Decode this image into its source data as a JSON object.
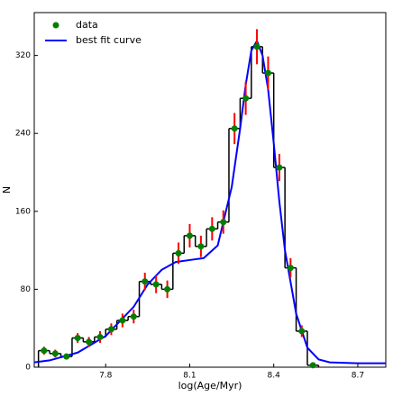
{
  "chart_data": {
    "type": "histogram_fit",
    "xlabel": "log(Age/Myr)",
    "ylabel": "N",
    "xlim": [
      7.545,
      8.8
    ],
    "ylim": [
      0,
      364
    ],
    "xticks": [
      7.8,
      8.1,
      8.4,
      8.7
    ],
    "yticks": [
      0,
      80,
      160,
      240,
      320
    ],
    "legend": "upper left",
    "histogram": {
      "color": "#000000",
      "bins": [
        7.56,
        7.6,
        7.64,
        7.68,
        7.72,
        7.76,
        7.8,
        7.84,
        7.88,
        7.92,
        7.96,
        8.0,
        8.04,
        8.08,
        8.12,
        8.16,
        8.2,
        8.24,
        8.28,
        8.32,
        8.36,
        8.4,
        8.44,
        8.48,
        8.52,
        8.56
      ],
      "counts": [
        17,
        14,
        11,
        30,
        26,
        31,
        39,
        48,
        52,
        88,
        85,
        80,
        117,
        135,
        124,
        142,
        149,
        245,
        276,
        329,
        302,
        205,
        102,
        37,
        2
      ]
    },
    "series": [
      {
        "name": "data",
        "color": "#008000",
        "error_color": "#ff0000",
        "x": [
          7.58,
          7.62,
          7.66,
          7.7,
          7.74,
          7.78,
          7.82,
          7.86,
          7.9,
          7.94,
          7.98,
          8.02,
          8.06,
          8.1,
          8.14,
          8.18,
          8.22,
          8.26,
          8.3,
          8.34,
          8.38,
          8.42,
          8.46,
          8.5,
          8.54
        ],
        "values": [
          17,
          14,
          11,
          30,
          26,
          31,
          39,
          48,
          52,
          88,
          85,
          80,
          117,
          135,
          124,
          142,
          149,
          245,
          276,
          329,
          302,
          205,
          102,
          37,
          2
        ],
        "errors": [
          4,
          4,
          3,
          5,
          5,
          6,
          6,
          7,
          7,
          9,
          9,
          9,
          11,
          12,
          11,
          12,
          12,
          16,
          17,
          18,
          17,
          14,
          10,
          6,
          1
        ]
      },
      {
        "name": "best fit curve",
        "color": "#0000ff",
        "x": [
          7.545,
          7.6,
          7.7,
          7.8,
          7.9,
          7.95,
          8.0,
          8.05,
          8.1,
          8.15,
          8.2,
          8.25,
          8.28,
          8.3,
          8.32,
          8.34,
          8.36,
          8.38,
          8.4,
          8.42,
          8.44,
          8.48,
          8.52,
          8.56,
          8.6,
          8.7,
          8.8
        ],
        "values": [
          5,
          7,
          15,
          32,
          62,
          85,
          100,
          108,
          110,
          112,
          125,
          185,
          245,
          290,
          325,
          335,
          320,
          285,
          230,
          170,
          120,
          55,
          20,
          8,
          5,
          4,
          4
        ]
      }
    ]
  }
}
